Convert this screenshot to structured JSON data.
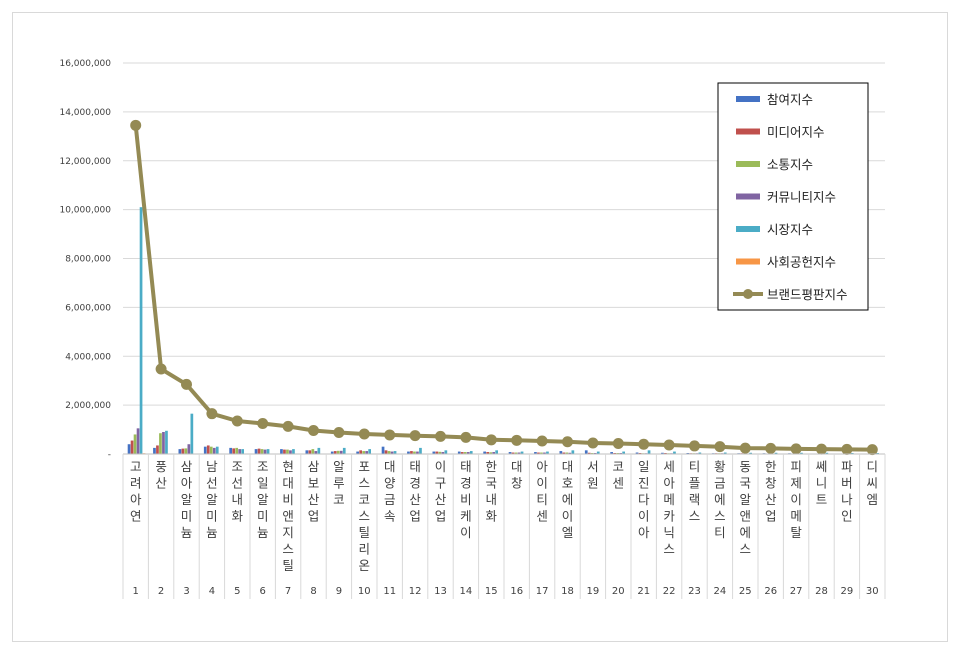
{
  "chart_data": {
    "type": "bar",
    "title": "",
    "xlabel": "",
    "ylabel": "",
    "ylim": [
      0,
      16000000
    ],
    "yticks": [
      0,
      2000000,
      4000000,
      6000000,
      8000000,
      10000000,
      12000000,
      14000000,
      16000000
    ],
    "ytick_labels": [
      "-",
      "2,000,000",
      "4,000,000",
      "6,000,000",
      "8,000,000",
      "10,000,000",
      "12,000,000",
      "14,000,000",
      "16,000,000"
    ],
    "grid": true,
    "legend_position": "top-right",
    "categories": [
      "고려아연",
      "풍산",
      "삼아알미늄",
      "남선알미늄",
      "조선내화",
      "조일알미늄",
      "현대비앤지스틸",
      "삼보산업",
      "알루코",
      "포스코스틸리온",
      "대양금속",
      "태경산업",
      "이구산업",
      "태경비케이",
      "한국내화",
      "대창",
      "아이티센",
      "대호에이엘",
      "서원",
      "코센",
      "일진다이아",
      "세아메카닉스",
      "티플랙스",
      "황금에스티",
      "동국알앤에스",
      "한창산업",
      "피제이메탈",
      "쎄니트",
      "파버나인",
      "디씨엠"
    ],
    "ranks": [
      "1",
      "2",
      "3",
      "4",
      "5",
      "6",
      "7",
      "8",
      "9",
      "10",
      "11",
      "12",
      "13",
      "14",
      "15",
      "16",
      "17",
      "18",
      "19",
      "20",
      "21",
      "22",
      "23",
      "24",
      "25",
      "26",
      "27",
      "28",
      "29",
      "30"
    ],
    "series": [
      {
        "name": "참여지수",
        "color": "#4472c4",
        "values": [
          400000,
          250000,
          200000,
          300000,
          250000,
          200000,
          200000,
          150000,
          100000,
          100000,
          300000,
          100000,
          100000,
          100000,
          100000,
          80000,
          80000,
          120000,
          150000,
          80000,
          60000,
          50000,
          40000,
          30000,
          30000,
          30000,
          30000,
          20000,
          20000,
          20000
        ]
      },
      {
        "name": "미디어지수",
        "color": "#c0504d",
        "values": [
          550000,
          350000,
          220000,
          350000,
          230000,
          220000,
          180000,
          150000,
          120000,
          150000,
          150000,
          120000,
          100000,
          80000,
          80000,
          60000,
          60000,
          60000,
          50000,
          40000,
          40000,
          40000,
          30000,
          30000,
          30000,
          20000,
          20000,
          20000,
          20000,
          20000
        ]
      },
      {
        "name": "소통지수",
        "color": "#9bbb59",
        "values": [
          800000,
          850000,
          230000,
          300000,
          250000,
          200000,
          180000,
          200000,
          130000,
          120000,
          120000,
          100000,
          90000,
          80000,
          70000,
          60000,
          60000,
          60000,
          40000,
          40000,
          30000,
          30000,
          30000,
          30000,
          20000,
          20000,
          20000,
          20000,
          20000,
          20000
        ]
      },
      {
        "name": "커뮤니티지수",
        "color": "#8064a2",
        "values": [
          1050000,
          900000,
          400000,
          250000,
          200000,
          180000,
          150000,
          120000,
          130000,
          120000,
          100000,
          100000,
          80000,
          80000,
          80000,
          60000,
          60000,
          50000,
          40000,
          40000,
          30000,
          30000,
          30000,
          30000,
          20000,
          20000,
          20000,
          20000,
          20000,
          20000
        ]
      },
      {
        "name": "시장지수",
        "color": "#4bacc6",
        "values": [
          10100000,
          950000,
          1650000,
          300000,
          200000,
          200000,
          200000,
          250000,
          250000,
          200000,
          120000,
          250000,
          150000,
          120000,
          150000,
          100000,
          100000,
          150000,
          100000,
          100000,
          150000,
          100000,
          60000,
          60000,
          50000,
          50000,
          50000,
          50000,
          40000,
          40000
        ]
      },
      {
        "name": "사회공헌지수",
        "color": "#f79646",
        "values": [
          30000,
          20000,
          20000,
          20000,
          15000,
          15000,
          15000,
          15000,
          10000,
          10000,
          10000,
          10000,
          10000,
          10000,
          10000,
          10000,
          10000,
          10000,
          10000,
          10000,
          10000,
          10000,
          10000,
          10000,
          10000,
          10000,
          10000,
          10000,
          10000,
          10000
        ]
      }
    ],
    "line_series": {
      "name": "브랜드평판지수",
      "color": "#948a54",
      "values": [
        13450000,
        3480000,
        2850000,
        1650000,
        1350000,
        1250000,
        1130000,
        960000,
        880000,
        820000,
        780000,
        750000,
        720000,
        680000,
        580000,
        560000,
        530000,
        500000,
        450000,
        430000,
        400000,
        370000,
        330000,
        300000,
        240000,
        230000,
        210000,
        200000,
        190000,
        180000
      ]
    }
  }
}
